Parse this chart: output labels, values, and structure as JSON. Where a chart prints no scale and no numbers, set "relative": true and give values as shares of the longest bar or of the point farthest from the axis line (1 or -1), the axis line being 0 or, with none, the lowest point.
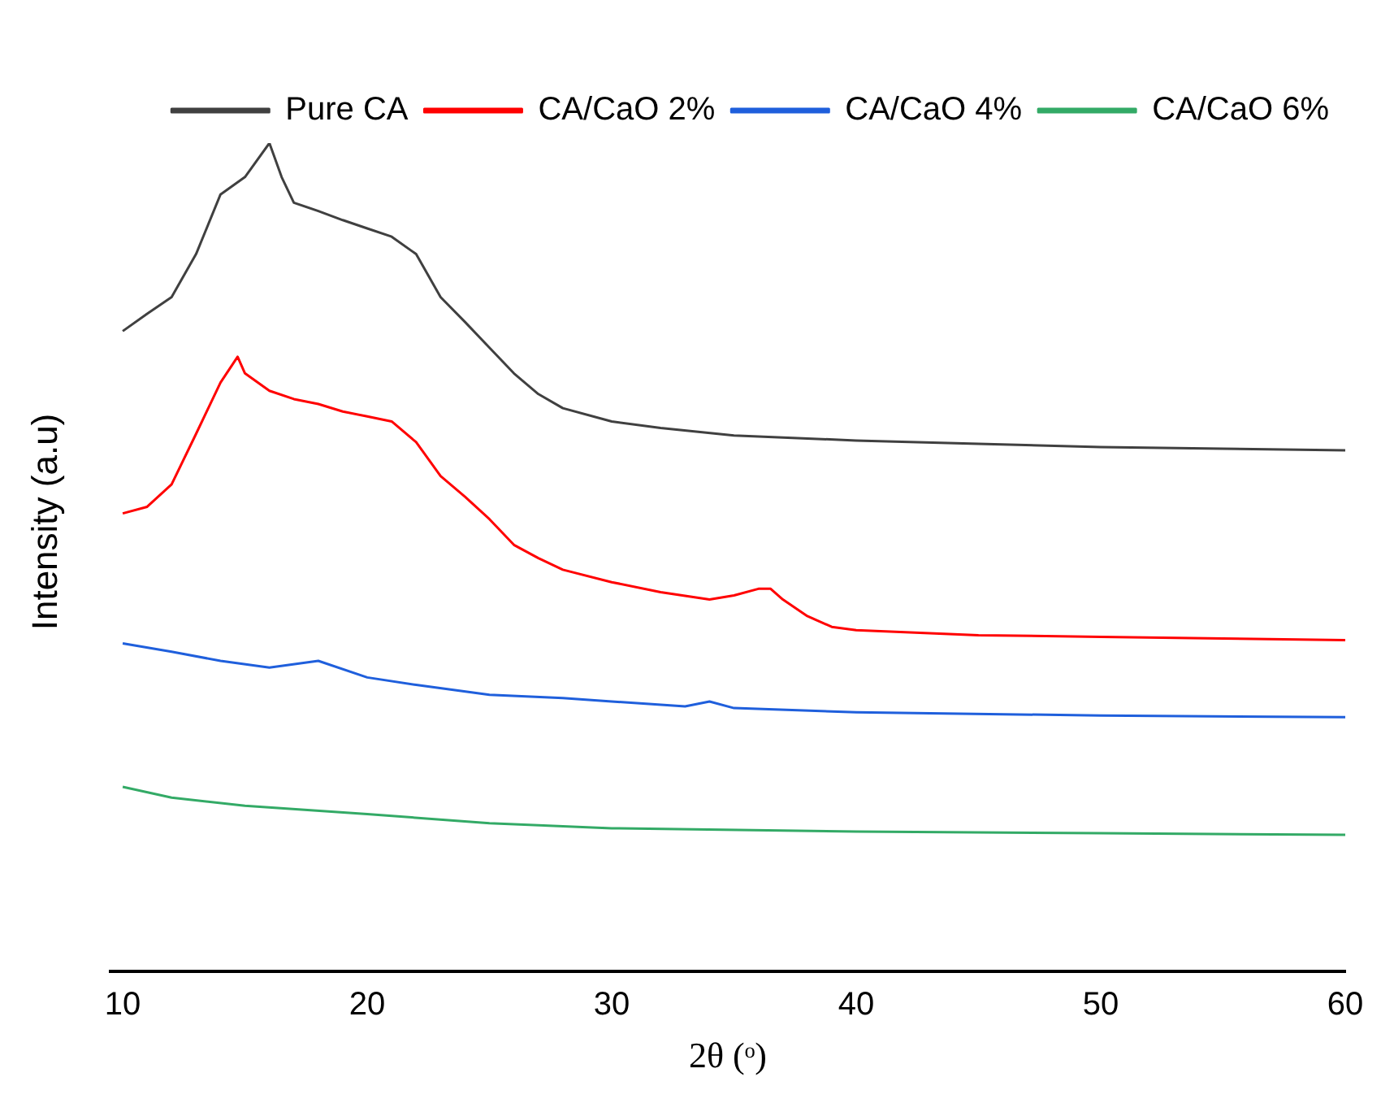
{
  "chart_data": {
    "type": "line",
    "xlabel": "2θ (ᵒ)",
    "ylabel": "Intensity (a.u)",
    "relative": true,
    "xlim": [
      9.5,
      60
    ],
    "xticks": [
      10,
      20,
      30,
      40,
      50,
      60
    ],
    "tick_labels": "x",
    "grid": false,
    "legend": "top right",
    "marker": "none",
    "line_style": "solid",
    "series": [
      {
        "name": "Pure CA",
        "color": "#404040",
        "x": [
          10,
          11,
          12,
          13,
          14,
          15,
          16,
          16.5,
          17,
          18,
          19,
          20,
          21,
          22,
          23,
          24,
          25,
          26,
          27,
          28,
          30,
          32,
          35,
          40,
          45,
          50,
          55,
          60
        ],
        "values": [
          0.773,
          0.794,
          0.814,
          0.866,
          0.938,
          0.959,
          1.0,
          0.959,
          0.928,
          0.918,
          0.907,
          0.897,
          0.887,
          0.866,
          0.814,
          0.784,
          0.753,
          0.722,
          0.697,
          0.68,
          0.664,
          0.656,
          0.647,
          0.641,
          0.637,
          0.633,
          0.631,
          0.629
        ]
      },
      {
        "name": "CA/CaO 2%",
        "color": "#ff0000",
        "x": [
          10,
          11,
          12,
          13,
          14,
          14.7,
          15,
          16,
          17,
          18,
          19,
          20,
          21,
          22,
          23,
          24,
          25,
          26,
          27,
          28,
          30,
          32,
          34,
          35,
          36,
          36.5,
          37,
          38,
          39,
          40,
          45,
          50,
          55,
          60
        ],
        "values": [
          0.553,
          0.561,
          0.588,
          0.649,
          0.711,
          0.742,
          0.722,
          0.701,
          0.691,
          0.685,
          0.676,
          0.67,
          0.664,
          0.639,
          0.598,
          0.573,
          0.546,
          0.515,
          0.499,
          0.485,
          0.47,
          0.458,
          0.449,
          0.454,
          0.462,
          0.462,
          0.449,
          0.429,
          0.416,
          0.412,
          0.406,
          0.404,
          0.402,
          0.4
        ]
      },
      {
        "name": "CA/CaO 4%",
        "color": "#1f5fdc",
        "x": [
          10,
          12,
          14,
          16,
          18,
          20,
          22,
          25,
          28,
          30,
          33,
          34,
          35,
          40,
          50,
          60
        ],
        "values": [
          0.396,
          0.386,
          0.375,
          0.367,
          0.375,
          0.355,
          0.346,
          0.334,
          0.33,
          0.326,
          0.32,
          0.326,
          0.318,
          0.313,
          0.309,
          0.307
        ]
      },
      {
        "name": "CA/CaO 6%",
        "color": "#33aa66",
        "x": [
          10,
          12,
          15,
          20,
          25,
          30,
          40,
          50,
          60
        ],
        "values": [
          0.223,
          0.21,
          0.2,
          0.19,
          0.179,
          0.173,
          0.169,
          0.167,
          0.165
        ]
      }
    ]
  }
}
